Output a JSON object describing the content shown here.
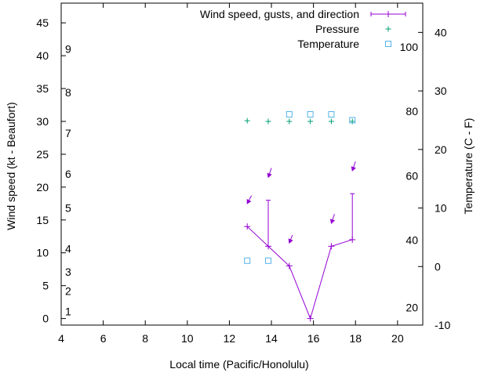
{
  "chart_data": {
    "type": "line",
    "xlabel": "Local time (Pacific/Honolulu)",
    "ylabel_left": "Wind speed (kt - Beaufort)",
    "ylabel_right": "Temperature (C - F)",
    "xlim": [
      4,
      21.2
    ],
    "ylim_left": [
      -1,
      48
    ],
    "ylim_right": [
      -10,
      45
    ],
    "x_ticks": [
      4,
      6,
      8,
      10,
      12,
      14,
      16,
      18,
      20
    ],
    "y_ticks_left": [
      0,
      5,
      10,
      15,
      20,
      25,
      30,
      35,
      40,
      45
    ],
    "y_ticks_right": [
      -10,
      0,
      10,
      20,
      30,
      40
    ],
    "beaufort_labels": [
      {
        "label": "1",
        "wind": 1.1
      },
      {
        "label": "2",
        "wind": 4.2
      },
      {
        "label": "3",
        "wind": 7.1
      },
      {
        "label": "4",
        "wind": 10.6
      },
      {
        "label": "5",
        "wind": 16.8
      },
      {
        "label": "6",
        "wind": 22
      },
      {
        "label": "7",
        "wind": 28.2
      },
      {
        "label": "8",
        "wind": 34.4
      },
      {
        "label": "9",
        "wind": 41
      }
    ],
    "fahrenheit_labels": [
      {
        "label": "20",
        "temp_c": -7
      },
      {
        "label": "40",
        "temp_c": 4.5
      },
      {
        "label": "60",
        "temp_c": 15.5
      },
      {
        "label": "80",
        "temp_c": 26.5
      },
      {
        "label": "100",
        "temp_c": 37.5
      }
    ],
    "legend": {
      "position": "top-right",
      "wind_label": "Wind speed, gusts, and direction",
      "pressure_label": "Pressure",
      "temperature_label": "Temperature"
    },
    "wind": [
      {
        "x": 12.85,
        "speed": 14,
        "gust": 14
      },
      {
        "x": 13.85,
        "speed": 11,
        "gust": 18
      },
      {
        "x": 14.85,
        "speed": 8,
        "gust": 8
      },
      {
        "x": 15.85,
        "speed": 0,
        "gust": 0
      },
      {
        "x": 16.85,
        "speed": 11,
        "gust": 11
      },
      {
        "x": 17.85,
        "speed": 12,
        "gust": 19
      }
    ],
    "direction_arrows": [
      {
        "x": 12.85,
        "wind": 17.5,
        "dx": 0.2,
        "dy": 1.2
      },
      {
        "x": 13.85,
        "wind": 21.5,
        "dx": 0.15,
        "dy": 1.4
      },
      {
        "x": 14.85,
        "wind": 11.5,
        "dx": 0.15,
        "dy": 1.2
      },
      {
        "x": 16.85,
        "wind": 14.5,
        "dx": 0.15,
        "dy": 1.4
      },
      {
        "x": 17.85,
        "wind": 22.5,
        "dx": 0.15,
        "dy": 1.4
      }
    ],
    "pressure": [
      {
        "x": 12.85,
        "wind": 30.1
      },
      {
        "x": 13.85,
        "wind": 30
      },
      {
        "x": 14.85,
        "wind": 30
      },
      {
        "x": 15.85,
        "wind": 30
      },
      {
        "x": 16.85,
        "wind": 30
      },
      {
        "x": 17.85,
        "wind": 30
      }
    ],
    "temperature": [
      {
        "x": 12.85,
        "temp_c": 1
      },
      {
        "x": 13.85,
        "temp_c": 1
      },
      {
        "x": 14.85,
        "temp_c": 26
      },
      {
        "x": 15.85,
        "temp_c": 26
      },
      {
        "x": 16.85,
        "temp_c": 26
      },
      {
        "x": 17.85,
        "temp_c": 25
      }
    ],
    "colors": {
      "wind": "#9400d3",
      "pressure": "#009e73",
      "temperature": "#56b4e9",
      "axis": "#000000"
    }
  }
}
